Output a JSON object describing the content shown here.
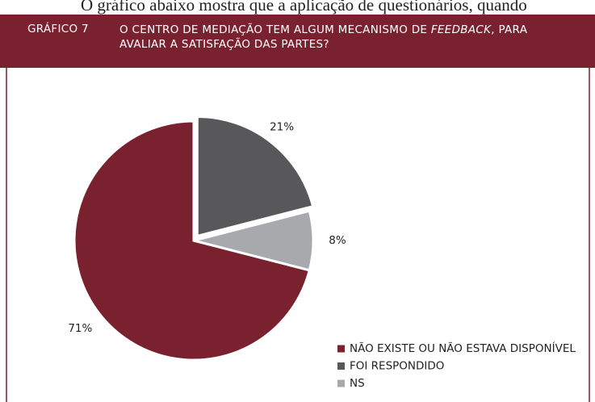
{
  "context_text": "O gráfico abaixo mostra que a aplicação de questionários, quando",
  "header": {
    "figure_label": "GRÁFICO 7"
  },
  "chart_data": {
    "type": "pie",
    "title": [
      "O CENTRO DE MEDIAÇÃO TEM ALGUM MECANISMO DE ",
      "FEEDBACK",
      ", PARA",
      "AVALIAR A SATISFAÇÃO DAS PARTES?"
    ],
    "categories": [
      "NÃO EXISTE OU NÃO ESTAVA DISPONÍVEL",
      "FOI RESPONDIDO",
      "NS"
    ],
    "values": [
      71,
      21,
      8
    ],
    "value_labels": [
      "71%",
      "21%",
      "8%"
    ],
    "colors": [
      "#7a212f",
      "#58585a",
      "#a7a9ac"
    ],
    "legend": "bottom-right"
  }
}
